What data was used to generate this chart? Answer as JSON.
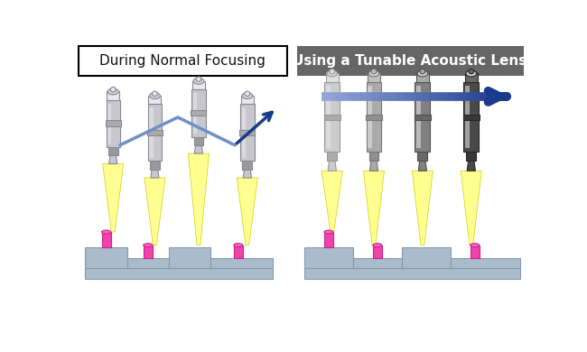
{
  "left_title": "During Normal Focusing",
  "right_title": "Using a Tunable Acoustic Lens",
  "left_title_box_color": "#ffffff",
  "left_title_border_color": "#000000",
  "right_title_bg_color": "#666666",
  "right_title_text_color": "#ffffff",
  "background_color": "#ffffff",
  "arrow_color_dark": "#1a3a8a",
  "arrow_color_light": "#7090c8",
  "platform_color": "#aabccc",
  "platform_edge_color": "#8899aa",
  "beam_color": "#ffff88",
  "beam_edge_color": "#cccc00",
  "sample_color": "#ee44aa",
  "sample_dark_color": "#cc2288",
  "lens_body_color": "#c8c8cc",
  "lens_dark_color": "#888898",
  "lens_top_color": "#e8e8ee",
  "lens_mid_color": "#aaaaaa",
  "lens_connector_color": "#999999"
}
